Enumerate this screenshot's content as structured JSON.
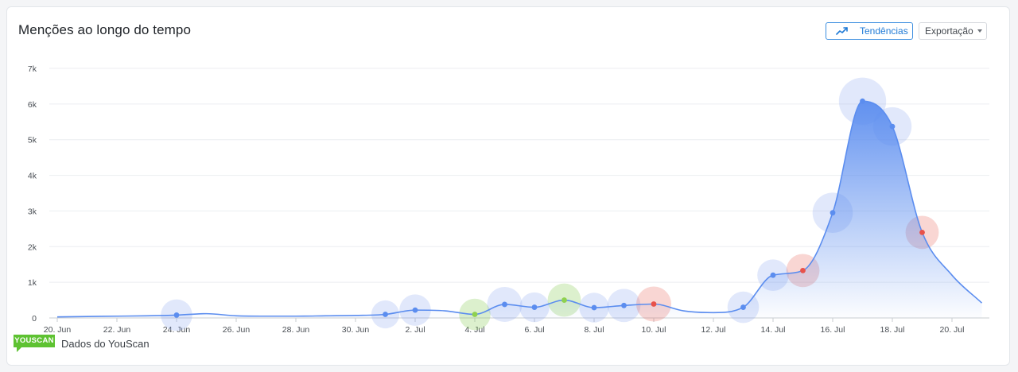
{
  "header": {
    "title": "Menções ao longo do tempo",
    "trend_label": "Tendências",
    "export_label": "Exportação"
  },
  "footer": {
    "logo_text": "YOUSCAN",
    "credit": "Dados do YouScan"
  },
  "colors": {
    "line": "#5b8def",
    "neutral": "#5b8def",
    "positive": "#8fd14f",
    "negative": "#e8524a",
    "logo": "#5ec232"
  },
  "chart_data": {
    "type": "area",
    "title": "Menções ao longo do tempo",
    "xlabel": "",
    "ylabel": "",
    "ylim": [
      0,
      7000
    ],
    "y_ticks": [
      0,
      1000,
      2000,
      3000,
      4000,
      5000,
      6000,
      7000
    ],
    "y_tick_labels": [
      "0",
      "1k",
      "2k",
      "3k",
      "4k",
      "5k",
      "6k",
      "7k"
    ],
    "x_ticks": [
      "2024-06-20",
      "2024-06-22",
      "2024-06-24",
      "2024-06-26",
      "2024-06-28",
      "2024-06-30",
      "2024-07-02",
      "2024-07-04",
      "2024-07-06",
      "2024-07-08",
      "2024-07-10",
      "2024-07-12",
      "2024-07-14",
      "2024-07-16",
      "2024-07-18",
      "2024-07-20"
    ],
    "x_tick_labels": [
      "20. Jun",
      "22. Jun",
      "24. Jun",
      "26. Jun",
      "28. Jun",
      "30. Jun",
      "2. Jul",
      "4. Jul",
      "6. Jul",
      "8. Jul",
      "10. Jul",
      "12. Jul",
      "14. Jul",
      "16. Jul",
      "18. Jul",
      "20. Jul"
    ],
    "grid": true,
    "series": [
      {
        "x": [
          "2024-06-20",
          "2024-06-21",
          "2024-06-22",
          "2024-06-23",
          "2024-06-24",
          "2024-06-25",
          "2024-06-26",
          "2024-06-27",
          "2024-06-28",
          "2024-06-29",
          "2024-06-30",
          "2024-07-01",
          "2024-07-02",
          "2024-07-03",
          "2024-07-04",
          "2024-07-05",
          "2024-07-06",
          "2024-07-07",
          "2024-07-08",
          "2024-07-09",
          "2024-07-10",
          "2024-07-11",
          "2024-07-12",
          "2024-07-13",
          "2024-07-14",
          "2024-07-15",
          "2024-07-16",
          "2024-07-17",
          "2024-07-18",
          "2024-07-19",
          "2024-07-20",
          "2024-07-21"
        ],
        "values": [
          30,
          40,
          50,
          60,
          80,
          120,
          60,
          50,
          50,
          60,
          70,
          100,
          220,
          200,
          100,
          380,
          300,
          500,
          290,
          350,
          390,
          200,
          150,
          300,
          1200,
          1330,
          2950,
          6080,
          5370,
          2400,
          1200,
          420
        ]
      }
    ],
    "markers": [
      {
        "x": "2024-06-24",
        "value": 80,
        "sentiment": "neutral",
        "weight": 0.4
      },
      {
        "x": "2024-07-01",
        "value": 100,
        "sentiment": "neutral",
        "weight": 0.3
      },
      {
        "x": "2024-07-02",
        "value": 220,
        "sentiment": "neutral",
        "weight": 0.4
      },
      {
        "x": "2024-07-04",
        "value": 100,
        "sentiment": "positive",
        "weight": 0.4
      },
      {
        "x": "2024-07-05",
        "value": 380,
        "sentiment": "neutral",
        "weight": 0.5
      },
      {
        "x": "2024-07-06",
        "value": 300,
        "sentiment": "neutral",
        "weight": 0.35
      },
      {
        "x": "2024-07-07",
        "value": 500,
        "sentiment": "positive",
        "weight": 0.45
      },
      {
        "x": "2024-07-08",
        "value": 290,
        "sentiment": "neutral",
        "weight": 0.35
      },
      {
        "x": "2024-07-09",
        "value": 350,
        "sentiment": "neutral",
        "weight": 0.45
      },
      {
        "x": "2024-07-10",
        "value": 390,
        "sentiment": "negative",
        "weight": 0.5
      },
      {
        "x": "2024-07-13",
        "value": 300,
        "sentiment": "neutral",
        "weight": 0.4
      },
      {
        "x": "2024-07-14",
        "value": 1200,
        "sentiment": "neutral",
        "weight": 0.4
      },
      {
        "x": "2024-07-15",
        "value": 1330,
        "sentiment": "negative",
        "weight": 0.45
      },
      {
        "x": "2024-07-16",
        "value": 2950,
        "sentiment": "neutral",
        "weight": 0.65
      },
      {
        "x": "2024-07-17",
        "value": 6080,
        "sentiment": "neutral",
        "weight": 0.85
      },
      {
        "x": "2024-07-18",
        "value": 5370,
        "sentiment": "neutral",
        "weight": 0.6
      },
      {
        "x": "2024-07-19",
        "value": 2400,
        "sentiment": "negative",
        "weight": 0.45
      }
    ]
  }
}
